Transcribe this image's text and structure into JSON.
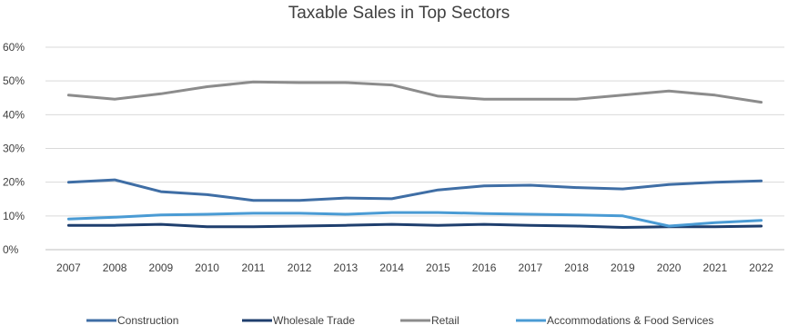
{
  "chart_data": {
    "type": "line",
    "title": "Taxable Sales in Top Sectors",
    "xlabel": "",
    "ylabel": "",
    "x": [
      "2007",
      "2008",
      "2009",
      "2010",
      "2011",
      "2012",
      "2013",
      "2014",
      "2015",
      "2016",
      "2017",
      "2018",
      "2019",
      "2020",
      "2021",
      "2022"
    ],
    "ylim": [
      0,
      60
    ],
    "yticks": [
      0,
      10,
      20,
      30,
      40,
      50,
      60
    ],
    "ytick_labels": [
      "0%",
      "10%",
      "20%",
      "30%",
      "40%",
      "50%",
      "60%"
    ],
    "grid": true,
    "legend_position": "bottom",
    "series": [
      {
        "name": "Construction",
        "color": "#3f6ea5",
        "values": [
          20.0,
          20.7,
          17.2,
          16.3,
          14.6,
          14.6,
          15.3,
          15.1,
          17.7,
          18.9,
          19.1,
          18.4,
          18.0,
          19.3,
          20.0,
          20.4
        ]
      },
      {
        "name": "Wholesale Trade",
        "color": "#1f3f6e",
        "values": [
          7.2,
          7.2,
          7.5,
          6.8,
          6.8,
          7.0,
          7.2,
          7.5,
          7.2,
          7.5,
          7.2,
          7.0,
          6.6,
          6.8,
          6.8,
          7.0
        ]
      },
      {
        "name": "Retail",
        "color": "#8c8c8c",
        "values": [
          45.8,
          44.6,
          46.2,
          48.3,
          49.7,
          49.5,
          49.5,
          48.8,
          45.5,
          44.6,
          44.6,
          44.6,
          45.8,
          47.0,
          45.8,
          43.7
        ]
      },
      {
        "name": "Accommodations & Food Services",
        "color": "#4a9bd4",
        "values": [
          9.1,
          9.6,
          10.3,
          10.5,
          10.8,
          10.8,
          10.5,
          11.0,
          11.0,
          10.7,
          10.5,
          10.3,
          10.0,
          7.0,
          8.0,
          8.7
        ]
      }
    ]
  }
}
